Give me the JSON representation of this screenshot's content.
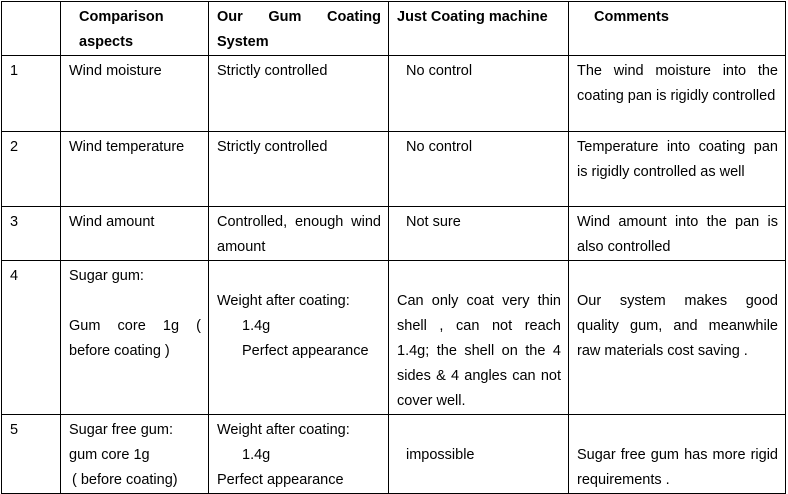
{
  "table": {
    "header": [
      "Comparison aspects",
      "Our Gum Coating System",
      "Just Coating machine",
      "Comments"
    ],
    "rows": [
      {
        "number": "1",
        "cells": [
          [
            "Wind moisture"
          ],
          [
            "Strictly controlled"
          ],
          [
            "No control"
          ],
          [
            "The wind moisture into the coating pan is rigidly controlled"
          ]
        ]
      },
      {
        "number": "2",
        "cells": [
          [
            "Wind temperature"
          ],
          [
            "Strictly controlled"
          ],
          [
            "No control"
          ],
          [
            "Temperature into coating pan is rigidly controlled as well"
          ]
        ]
      },
      {
        "number": "3",
        "cells": [
          [
            "Wind amount"
          ],
          [
            "Controlled, enough wind amount"
          ],
          [
            "Not sure"
          ],
          [
            "Wind amount into the pan is also controlled"
          ]
        ]
      },
      {
        "number": "4",
        "cells": [
          [
            "Sugar gum:",
            "Gum core 1g ( before coating )"
          ],
          [
            "Weight after coating:",
            "1.4g",
            "Perfect appearance"
          ],
          [
            "Can only coat very thin shell , can not reach 1.4g; the shell on the 4 sides & 4 angles can not cover well."
          ],
          [
            "Our system makes good quality gum, and meanwhile raw materials cost saving ."
          ]
        ]
      },
      {
        "number": "5",
        "cells": [
          [
            "Sugar free gum:",
            "gum core 1g",
            "( before coating)"
          ],
          [
            "Weight after coating:",
            "1.4g",
            "Perfect appearance"
          ],
          [
            "impossible"
          ],
          [
            "Sugar free gum has more rigid requirements ."
          ]
        ]
      }
    ]
  }
}
